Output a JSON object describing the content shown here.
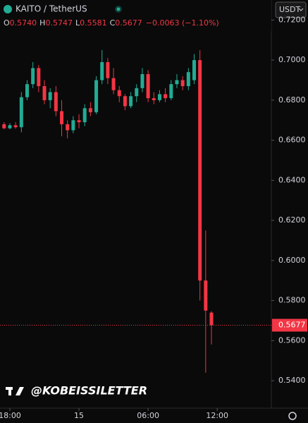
{
  "symbol": "KAITO / TetherUS",
  "currency_button": "USDT",
  "ohlc": [
    {
      "key": "O",
      "value": "0.5740"
    },
    {
      "key": "H",
      "value": "0.5747"
    },
    {
      "key": "L",
      "value": "0.5581"
    },
    {
      "key": "C",
      "value": "0.5677"
    }
  ],
  "change": "−0.0063 (−1.10%)",
  "watermark": "@KOBEISSILETTER",
  "chart_data": {
    "type": "candlestick",
    "up_color": "#22ab94",
    "down_color": "#f23645",
    "x": [
      -1,
      0,
      1,
      2,
      3,
      4,
      5,
      6,
      7,
      8,
      9,
      10,
      11,
      12,
      13,
      14,
      15,
      16,
      17,
      18,
      19,
      20,
      21,
      22,
      23,
      24,
      25,
      26,
      27,
      28,
      29,
      30,
      31,
      32,
      33,
      34,
      35
    ],
    "open": [
      0.668,
      0.666,
      0.6675,
      0.6665,
      0.6815,
      0.688,
      0.696,
      0.687,
      0.68,
      0.684,
      0.6745,
      0.668,
      0.665,
      0.67,
      0.669,
      0.676,
      0.674,
      0.69,
      0.699,
      0.691,
      0.685,
      0.682,
      0.677,
      0.682,
      0.686,
      0.693,
      0.681,
      0.68,
      0.683,
      0.681,
      0.688,
      0.69,
      0.687,
      0.69,
      0.7,
      0.59,
      0.574
    ],
    "high": [
      0.669,
      0.6685,
      0.669,
      0.684,
      0.69,
      0.699,
      0.6975,
      0.69,
      0.686,
      0.687,
      0.68,
      0.67,
      0.672,
      0.673,
      0.678,
      0.679,
      0.692,
      0.705,
      0.701,
      0.696,
      0.687,
      0.683,
      0.684,
      0.688,
      0.696,
      0.695,
      0.684,
      0.685,
      0.686,
      0.69,
      0.693,
      0.692,
      0.696,
      0.703,
      0.705,
      0.615,
      0.5747
    ],
    "low": [
      0.6655,
      0.6655,
      0.6658,
      0.664,
      0.68,
      0.686,
      0.684,
      0.678,
      0.676,
      0.672,
      0.662,
      0.661,
      0.6635,
      0.666,
      0.667,
      0.672,
      0.673,
      0.688,
      0.688,
      0.683,
      0.679,
      0.675,
      0.676,
      0.679,
      0.684,
      0.679,
      0.678,
      0.679,
      0.679,
      0.68,
      0.686,
      0.685,
      0.685,
      0.688,
      0.58,
      0.544,
      0.5581
    ],
    "close": [
      0.666,
      0.6675,
      0.6665,
      0.6815,
      0.688,
      0.696,
      0.687,
      0.68,
      0.684,
      0.6745,
      0.668,
      0.665,
      0.67,
      0.669,
      0.676,
      0.674,
      0.69,
      0.699,
      0.691,
      0.685,
      0.682,
      0.677,
      0.682,
      0.686,
      0.693,
      0.681,
      0.68,
      0.683,
      0.681,
      0.688,
      0.69,
      0.687,
      0.694,
      0.7,
      0.59,
      0.575,
      0.5677
    ],
    "xlim": [
      -1.71,
      45.4
    ],
    "xticks": [
      {
        "value": 0,
        "label": "18:00"
      },
      {
        "value": 12,
        "label": "15"
      },
      {
        "value": 24,
        "label": "06:00"
      },
      {
        "value": 36,
        "label": "12:00"
      }
    ],
    "ylim": [
      0.5263,
      0.73
    ],
    "yticks": [
      {
        "value": 0.54,
        "label": "0.5400"
      },
      {
        "value": 0.56,
        "label": "0.5600"
      },
      {
        "value": 0.58,
        "label": "0.5800"
      },
      {
        "value": 0.6,
        "label": "0.6000"
      },
      {
        "value": 0.62,
        "label": "0.6200"
      },
      {
        "value": 0.64,
        "label": "0.6400"
      },
      {
        "value": 0.66,
        "label": "0.6600"
      },
      {
        "value": 0.68,
        "label": "0.6800"
      },
      {
        "value": 0.7,
        "label": "0.7000"
      },
      {
        "value": 0.72,
        "label": "0.7200"
      }
    ],
    "last_price": {
      "value": 0.5677,
      "label": "0.5677"
    }
  }
}
